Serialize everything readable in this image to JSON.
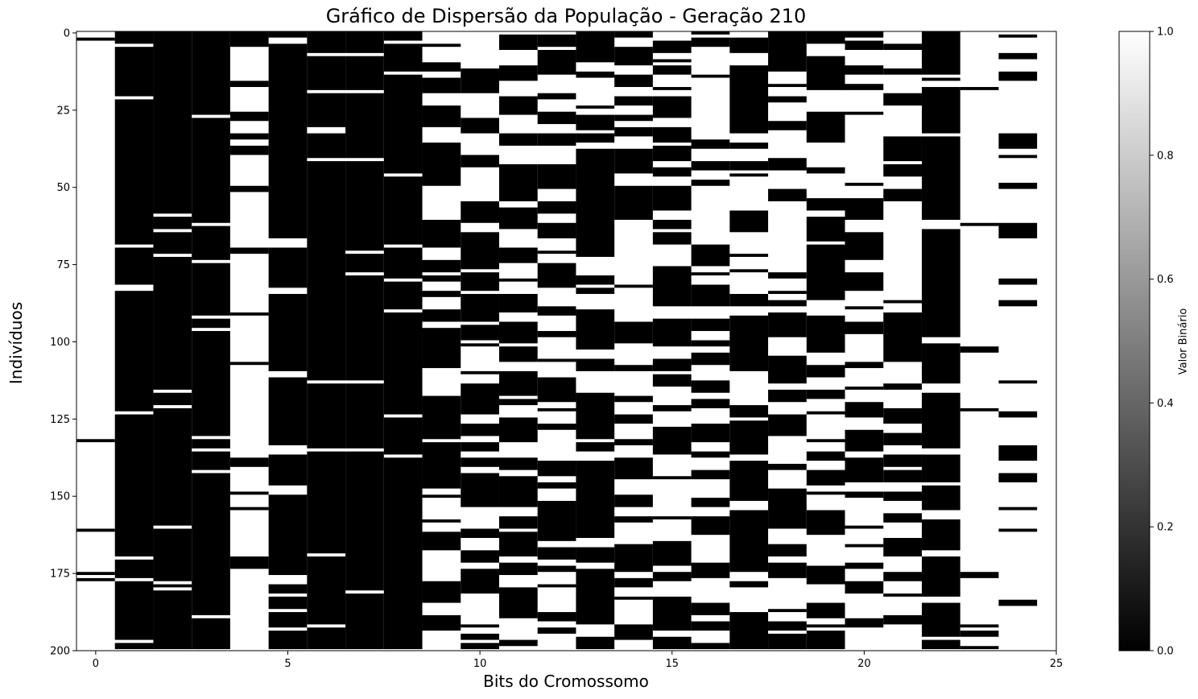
{
  "chart_data": {
    "type": "heatmap",
    "title": "Gráfico de Dispersão da População - Geração 210",
    "xlabel": "Bits do Cromossomo",
    "ylabel": "Indivíduos",
    "colorbar_label": "Valor Binário",
    "colormap": "gray",
    "x_ticks": [
      0,
      5,
      10,
      15,
      20,
      25
    ],
    "y_ticks": [
      0,
      25,
      50,
      75,
      100,
      125,
      150,
      175,
      200
    ],
    "colorbar_ticks": [
      "0.0",
      "0.2",
      "0.4",
      "0.6",
      "0.8",
      "1.0"
    ],
    "xlim": [
      -0.5,
      25
    ],
    "ylim": [
      200,
      -0.5
    ],
    "n_rows": 200,
    "n_cols": 25,
    "color_one": "#ffffff",
    "color_zero": "#000000",
    "column_exceptions": [
      {
        "col": 0,
        "base": 1,
        "flips": [
          2,
          132,
          161,
          175,
          177
        ]
      },
      {
        "col": 1,
        "base": 0,
        "flips": [
          4,
          21,
          69,
          82,
          83,
          123,
          170,
          177,
          197
        ]
      },
      {
        "col": 2,
        "base": 0,
        "flips": [
          59,
          64,
          72,
          116,
          121,
          160,
          178,
          180
        ]
      },
      {
        "col": 3,
        "base": 0,
        "flips": [
          27,
          62,
          74,
          92,
          96,
          131,
          135,
          142,
          189
        ]
      },
      {
        "col": 6,
        "base": 0,
        "flips": [
          7,
          19,
          31,
          32,
          41,
          113,
          135,
          169,
          192
        ]
      },
      {
        "col": 7,
        "base": 0,
        "flips": [
          7,
          19,
          41,
          71,
          78,
          113,
          135,
          181
        ]
      },
      {
        "col": 8,
        "base": 0,
        "flips": [
          3,
          13,
          46,
          69,
          80,
          90,
          124,
          137
        ]
      }
    ],
    "random_columns": [
      4,
      5,
      9,
      10,
      11,
      12,
      13,
      14,
      15,
      16,
      17,
      18,
      19,
      20,
      21,
      22,
      23,
      24
    ],
    "random_column_ones_fraction": [
      0.75,
      0.3,
      0.35,
      0.55,
      0.4,
      0.45,
      0.35,
      0.55,
      0.4,
      0.55,
      0.45,
      0.5,
      0.45,
      0.55,
      0.6,
      0.25,
      0.8,
      0.7
    ]
  }
}
